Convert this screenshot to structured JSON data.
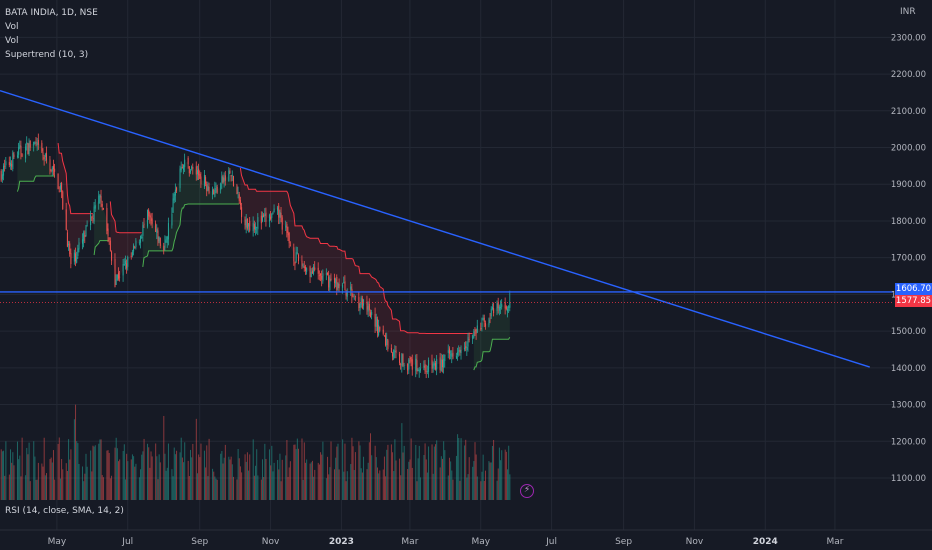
{
  "legend": {
    "symbol": "BATA INDIA, 1D, NSE",
    "indicators": [
      "Vol",
      "Vol",
      "Supertrend (10, 3)"
    ]
  },
  "rsi_label": "RSI (14, close, SMA, 14, 2)",
  "currency": "INR",
  "price_badges": {
    "blue": "1606.70",
    "red": "1577.85"
  },
  "colors": {
    "background": "#161a25",
    "up": "#26a69a",
    "down": "#ef5350",
    "trendline": "#2962ff",
    "supertrend_up": "#4caf50",
    "supertrend_down": "#f23645",
    "grid": "#232834",
    "axis_text": "#b2b5be"
  },
  "icons": {
    "alert": "lightning-bolt-icon"
  },
  "chart_data": {
    "type": "candlestick",
    "y_ticks": [
      "2300.00",
      "2200.00",
      "2100.00",
      "2000.00",
      "1900.00",
      "1800.00",
      "1700.00",
      "1600.00",
      "1500.00",
      "1400.00",
      "1300.00",
      "1200.00",
      "1100.00"
    ],
    "y_tick_values": [
      2300,
      2200,
      2100,
      2000,
      1900,
      1800,
      1700,
      1600,
      1500,
      1400,
      1300,
      1200,
      1100
    ],
    "ylim": [
      1040,
      2380
    ],
    "x_ticks": [
      "May",
      "Jul",
      "Sep",
      "Nov",
      "2023",
      "Mar",
      "May",
      "Jul",
      "Sep",
      "Nov",
      "2024",
      "Mar"
    ],
    "x_tick_dates": [
      "2022-05-01",
      "2022-07-01",
      "2022-09-01",
      "2022-11-01",
      "2023-01-01",
      "2023-03-01",
      "2023-05-01",
      "2023-07-01",
      "2023-09-01",
      "2023-11-01",
      "2024-01-01",
      "2024-03-01"
    ],
    "xlim": [
      "2022-03-13",
      "2024-04-20"
    ],
    "last_date": "2023-05-26",
    "price_anchors": [
      [
        "2022-03-14",
        1930
      ],
      [
        "2022-03-28",
        1985
      ],
      [
        "2022-04-11",
        2010
      ],
      [
        "2022-04-25",
        1950
      ],
      [
        "2022-05-04",
        1890
      ],
      [
        "2022-05-13",
        1680
      ],
      [
        "2022-05-25",
        1760
      ],
      [
        "2022-06-08",
        1870
      ],
      [
        "2022-06-20",
        1640
      ],
      [
        "2022-07-04",
        1700
      ],
      [
        "2022-07-18",
        1810
      ],
      [
        "2022-08-01",
        1720
      ],
      [
        "2022-08-16",
        1960
      ],
      [
        "2022-08-30",
        1930
      ],
      [
        "2022-09-13",
        1880
      ],
      [
        "2022-09-27",
        1930
      ],
      [
        "2022-10-11",
        1790
      ],
      [
        "2022-10-25",
        1800
      ],
      [
        "2022-11-08",
        1820
      ],
      [
        "2022-11-22",
        1700
      ],
      [
        "2022-12-06",
        1660
      ],
      [
        "2022-12-20",
        1640
      ],
      [
        "2023-01-03",
        1620
      ],
      [
        "2023-01-17",
        1580
      ],
      [
        "2023-01-31",
        1520
      ],
      [
        "2023-02-14",
        1440
      ],
      [
        "2023-02-28",
        1410
      ],
      [
        "2023-03-14",
        1400
      ],
      [
        "2023-03-28",
        1410
      ],
      [
        "2023-04-11",
        1455
      ],
      [
        "2023-04-25",
        1490
      ],
      [
        "2023-05-09",
        1545
      ],
      [
        "2023-05-26",
        1577.85
      ]
    ],
    "trendlines": [
      {
        "name": "Descending trendline",
        "points": [
          [
            "2022-03-13",
            2155
          ],
          [
            "2024-03-31",
            1402
          ]
        ]
      },
      {
        "name": "Horizontal level",
        "points": [
          [
            "2022-03-13",
            1606.7
          ],
          [
            "2024-04-20",
            1606.7
          ]
        ]
      }
    ],
    "supertrend": {
      "period": 10,
      "multiplier": 3
    },
    "volume_ylim": [
      0,
      4000000
    ]
  }
}
